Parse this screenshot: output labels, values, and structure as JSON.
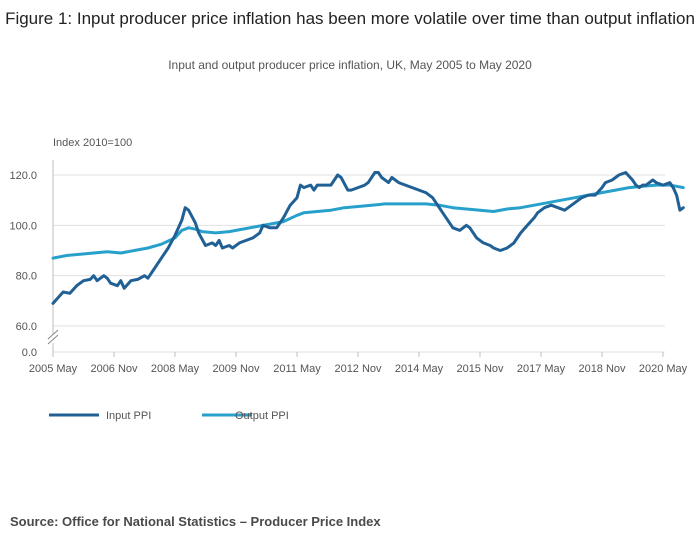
{
  "header": {
    "title": "Figure 1: Input producer price inflation has been more volatile over time than output inflation",
    "subtitle": "Input and output producer price inflation, UK, May 2005 to May 2020"
  },
  "footer": {
    "source": "Source: Office for National Statistics – Producer Price Index"
  },
  "colors": {
    "input": "#206095",
    "output": "#27a0cc",
    "grid": "#e0e0e0",
    "axis": "#bfbfbf"
  },
  "chart_data": {
    "type": "line",
    "title": "Figure 1: Input producer price inflation has been more volatile over time than output inflation",
    "subtitle": "Input and output producer price inflation, UK, May 2005 to May 2020",
    "ylabel": "Index 2010=100",
    "xlabel": "",
    "x_start": "2005 May",
    "x_end": "2020 May",
    "ylim": [
      0,
      130
    ],
    "y_axis_break": [
      0,
      60
    ],
    "y_ticks": [
      "120.0",
      "100.0",
      "80.0",
      "60.0",
      "0.0"
    ],
    "y_tick_values": [
      120,
      100,
      80,
      60,
      0
    ],
    "x_ticks": [
      "2005 May",
      "2006 Nov",
      "2008 May",
      "2009 Nov",
      "2011 May",
      "2012 Nov",
      "2014 May",
      "2015 Nov",
      "2017 May",
      "2018 Nov",
      "2020 May"
    ],
    "x_tick_months": [
      0,
      18,
      36,
      54,
      72,
      90,
      108,
      126,
      144,
      162,
      180
    ],
    "legend": "bottom-left",
    "series": [
      {
        "name": "Input PPI",
        "color": "#206095",
        "points": [
          [
            0,
            69
          ],
          [
            2,
            72
          ],
          [
            3,
            73.5
          ],
          [
            5,
            73
          ],
          [
            7,
            76
          ],
          [
            9,
            78
          ],
          [
            11,
            78.5
          ],
          [
            12,
            80
          ],
          [
            13,
            78
          ],
          [
            15,
            80
          ],
          [
            16,
            79
          ],
          [
            17,
            77
          ],
          [
            19,
            76
          ],
          [
            20,
            78
          ],
          [
            21,
            75
          ],
          [
            23,
            78
          ],
          [
            25,
            78.5
          ],
          [
            27,
            80
          ],
          [
            28,
            79
          ],
          [
            30,
            83
          ],
          [
            32,
            87
          ],
          [
            34,
            91
          ],
          [
            36,
            96
          ],
          [
            38,
            102
          ],
          [
            39,
            107
          ],
          [
            40,
            106
          ],
          [
            42,
            101
          ],
          [
            43,
            97
          ],
          [
            45,
            92
          ],
          [
            47,
            93
          ],
          [
            48,
            92
          ],
          [
            49,
            94
          ],
          [
            50,
            91
          ],
          [
            52,
            92
          ],
          [
            53,
            91
          ],
          [
            55,
            93
          ],
          [
            57,
            94
          ],
          [
            59,
            95
          ],
          [
            61,
            97
          ],
          [
            62,
            100
          ],
          [
            64,
            99
          ],
          [
            66,
            99
          ],
          [
            68,
            103
          ],
          [
            70,
            108
          ],
          [
            72,
            111
          ],
          [
            73,
            116
          ],
          [
            74,
            115
          ],
          [
            76,
            116
          ],
          [
            77,
            114
          ],
          [
            78,
            116
          ],
          [
            80,
            116
          ],
          [
            82,
            116
          ],
          [
            84,
            120
          ],
          [
            85,
            119
          ],
          [
            87,
            114
          ],
          [
            88,
            114
          ],
          [
            90,
            115
          ],
          [
            92,
            116
          ],
          [
            93,
            117
          ],
          [
            95,
            121
          ],
          [
            96,
            121
          ],
          [
            97,
            119
          ],
          [
            99,
            117
          ],
          [
            100,
            119
          ],
          [
            102,
            117
          ],
          [
            104,
            116
          ],
          [
            106,
            115
          ],
          [
            108,
            114
          ],
          [
            110,
            113
          ],
          [
            112,
            111
          ],
          [
            114,
            107
          ],
          [
            116,
            103
          ],
          [
            118,
            99
          ],
          [
            120,
            98
          ],
          [
            122,
            100
          ],
          [
            123,
            99
          ],
          [
            125,
            95
          ],
          [
            127,
            93
          ],
          [
            129,
            92
          ],
          [
            130,
            91
          ],
          [
            132,
            90
          ],
          [
            134,
            91
          ],
          [
            136,
            93
          ],
          [
            138,
            97
          ],
          [
            140,
            100
          ],
          [
            142,
            103
          ],
          [
            143,
            105
          ],
          [
            145,
            107
          ],
          [
            147,
            108
          ],
          [
            149,
            107
          ],
          [
            151,
            106
          ],
          [
            152,
            107
          ],
          [
            154,
            109
          ],
          [
            156,
            111
          ],
          [
            158,
            112
          ],
          [
            160,
            112
          ],
          [
            162,
            115
          ],
          [
            163,
            117
          ],
          [
            165,
            118
          ],
          [
            167,
            120
          ],
          [
            169,
            121
          ],
          [
            171,
            118
          ],
          [
            172,
            116
          ],
          [
            173,
            115
          ],
          [
            174,
            116
          ],
          [
            175,
            116
          ],
          [
            176,
            117
          ],
          [
            177,
            118
          ],
          [
            178,
            117
          ],
          [
            180,
            116
          ],
          [
            182,
            117
          ],
          [
            183,
            115
          ],
          [
            184,
            112
          ],
          [
            185,
            106
          ],
          [
            186,
            107
          ]
        ]
      },
      {
        "name": "Output PPI",
        "color": "#27a0cc",
        "points": [
          [
            0,
            87
          ],
          [
            4,
            88
          ],
          [
            8,
            88.5
          ],
          [
            12,
            89
          ],
          [
            16,
            89.5
          ],
          [
            20,
            89
          ],
          [
            24,
            90
          ],
          [
            28,
            91
          ],
          [
            32,
            92.5
          ],
          [
            36,
            95
          ],
          [
            38,
            98
          ],
          [
            40,
            99
          ],
          [
            42,
            98.5
          ],
          [
            44,
            97.5
          ],
          [
            48,
            97
          ],
          [
            52,
            97.5
          ],
          [
            56,
            98.5
          ],
          [
            60,
            99.5
          ],
          [
            64,
            100.5
          ],
          [
            68,
            101.5
          ],
          [
            72,
            104
          ],
          [
            74,
            105
          ],
          [
            78,
            105.5
          ],
          [
            82,
            106
          ],
          [
            86,
            107
          ],
          [
            90,
            107.5
          ],
          [
            94,
            108
          ],
          [
            98,
            108.5
          ],
          [
            102,
            108.5
          ],
          [
            106,
            108.5
          ],
          [
            110,
            108.5
          ],
          [
            114,
            108
          ],
          [
            118,
            107
          ],
          [
            122,
            106.5
          ],
          [
            126,
            106
          ],
          [
            130,
            105.5
          ],
          [
            134,
            106.5
          ],
          [
            138,
            107
          ],
          [
            142,
            108
          ],
          [
            146,
            109
          ],
          [
            150,
            110
          ],
          [
            154,
            111
          ],
          [
            158,
            112
          ],
          [
            162,
            113
          ],
          [
            166,
            114
          ],
          [
            170,
            115
          ],
          [
            174,
            115.5
          ],
          [
            178,
            116
          ],
          [
            182,
            116
          ],
          [
            184,
            115.5
          ],
          [
            186,
            115
          ]
        ]
      }
    ]
  }
}
